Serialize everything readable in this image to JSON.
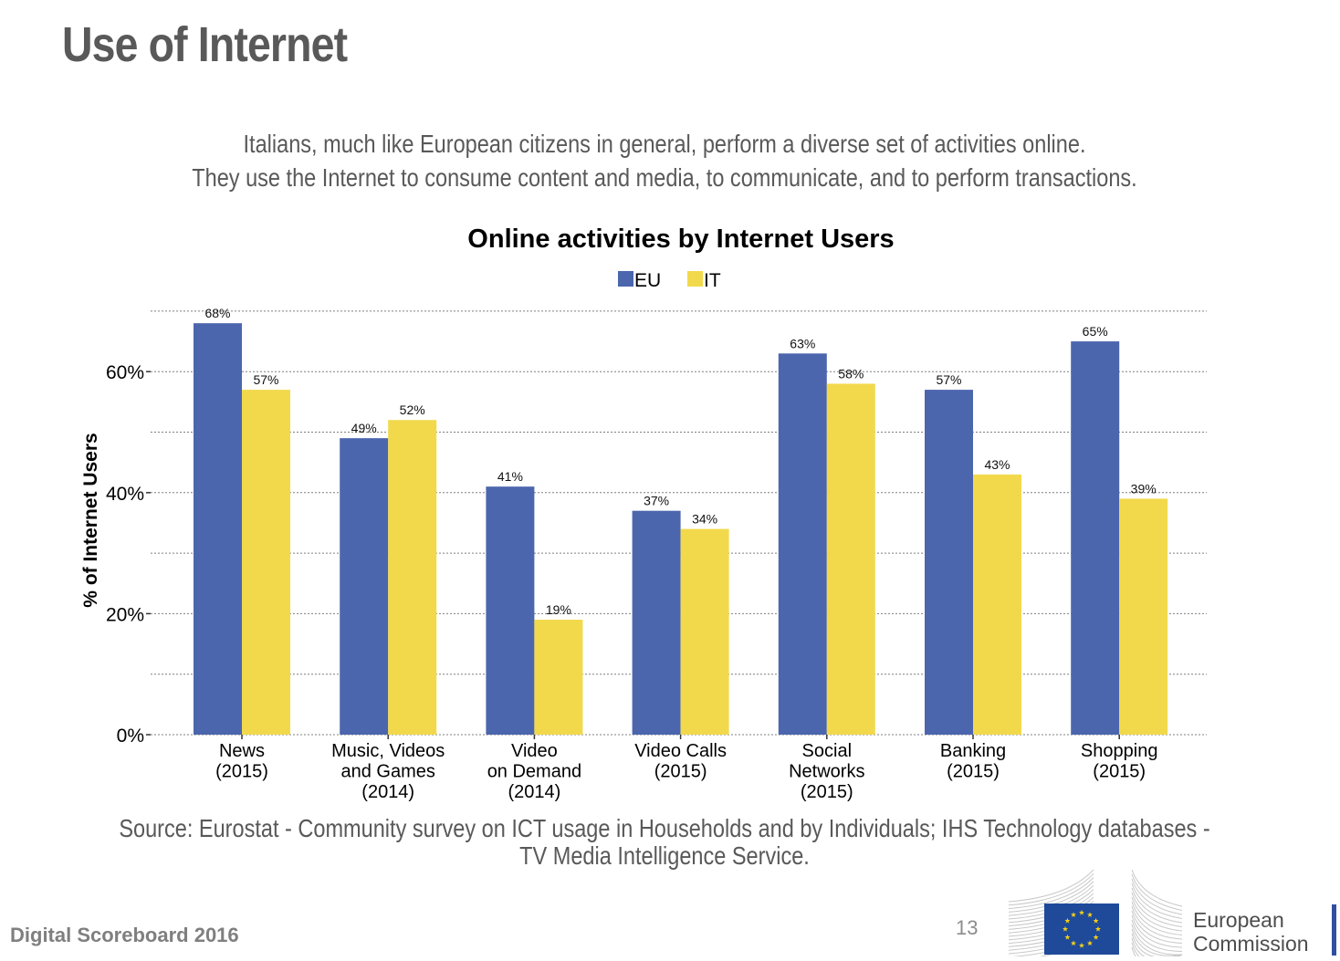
{
  "slide": {
    "title": "Use of Internet",
    "subtitle_lines": [
      "Italians, much like European citizens in general, perform a diverse set of activities online.",
      "They use the Internet to consume content and media, to communicate, and to perform transactions."
    ],
    "source_lines": [
      "Source: Eurostat - Community survey on ICT usage in Households and by Individuals; IHS Technology databases -",
      "TV Media Intelligence Service."
    ],
    "footer_left": "Digital Scoreboard 2016",
    "page_number": "13",
    "logo": {
      "text_lines": [
        "European",
        "Commission"
      ],
      "icon": "eu-flag-icon",
      "flag_color": "#1f4a9a",
      "star_color": "#f7d117"
    }
  },
  "chart_data": {
    "type": "bar",
    "title": "Online activities by Internet Users",
    "xlabel": "",
    "ylabel": "% of Internet Users",
    "ylim": [
      0,
      70
    ],
    "yticks": [
      0,
      20,
      40,
      60
    ],
    "ytick_labels": [
      "0%",
      "20%",
      "40%",
      "60%"
    ],
    "minor_gridlines": [
      10,
      30,
      50,
      70
    ],
    "grid": true,
    "legend_position": "top-center",
    "categories": [
      [
        "News",
        "(2015)"
      ],
      [
        "Music, Videos",
        "and Games",
        "(2014)"
      ],
      [
        "Video",
        "on Demand",
        "(2014)"
      ],
      [
        "Video Calls",
        "(2015)"
      ],
      [
        "Social",
        "Networks",
        "(2015)"
      ],
      [
        "Banking",
        "(2015)"
      ],
      [
        "Shopping",
        "(2015)"
      ]
    ],
    "series": [
      {
        "name": "EU",
        "color": "#4c66ae",
        "values": [
          68,
          49,
          41,
          37,
          63,
          57,
          65
        ],
        "labels": [
          "68%",
          "49%",
          "41%",
          "37%",
          "63%",
          "57%",
          "65%"
        ]
      },
      {
        "name": "IT",
        "color": "#f2d94c",
        "values": [
          57,
          52,
          19,
          34,
          58,
          43,
          39
        ],
        "labels": [
          "57%",
          "52%",
          "19%",
          "34%",
          "58%",
          "43%",
          "39%"
        ]
      }
    ]
  }
}
